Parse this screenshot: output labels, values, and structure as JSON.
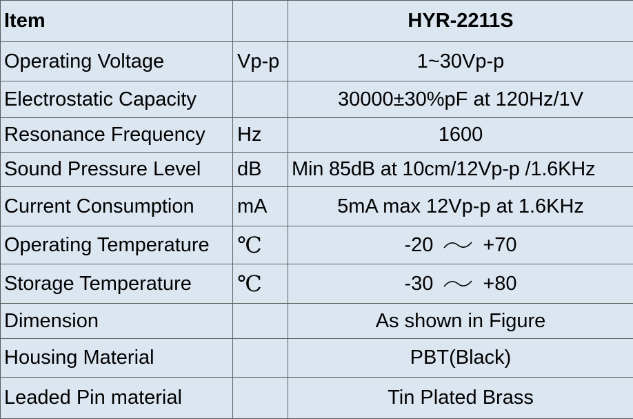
{
  "header": {
    "item_label": "Item",
    "unit_label": "",
    "model": "HYR-2211S"
  },
  "rows": [
    {
      "name": "Operating Voltage",
      "unit": "Vp-p",
      "value": "1~30Vp-p"
    },
    {
      "name": "Electrostatic Capacity",
      "unit": "",
      "value": "30000±30%pF at 120Hz/1V"
    },
    {
      "name": "Resonance Frequency",
      "unit": "Hz",
      "value": "1600"
    },
    {
      "name": "Sound Pressure Level",
      "unit": "dB",
      "value": "Min 85dB at 10cm/12Vp-p /1.6KHz"
    },
    {
      "name": "Current Consumption",
      "unit": "mA",
      "value": "5mA max 12Vp-p at 1.6KHz"
    },
    {
      "name": "Operating Temperature",
      "unit": "℃",
      "value_min": "-20",
      "value_max": "+70"
    },
    {
      "name": "Storage Temperature",
      "unit": "℃",
      "value_min": "-30",
      "value_max": "+80"
    },
    {
      "name": "Dimension",
      "unit": "",
      "value": "As shown in Figure"
    },
    {
      "name": "Housing Material",
      "unit": "",
      "value": "PBT(Black)"
    },
    {
      "name": "Leaded Pin material",
      "unit": "",
      "value": "Tin Plated Brass"
    }
  ]
}
